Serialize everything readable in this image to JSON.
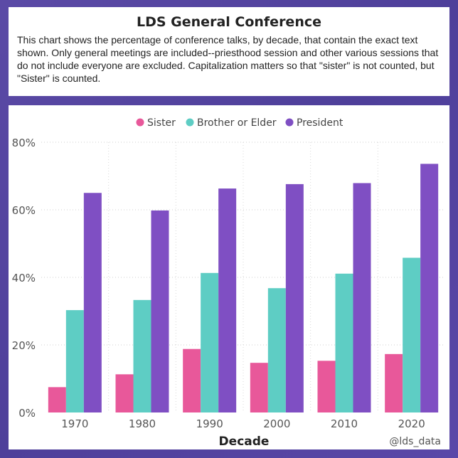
{
  "header": {
    "title": "LDS General Conference",
    "description": "This chart shows the percentage of conference talks, by decade, that contain the exact text shown. Only general meetings are included--priesthood session and other various sessions that do not include everyone are excluded. Capitalization matters so that \"sister\" is not counted, but \"Sister\" is counted."
  },
  "watermark": "@lds_data",
  "chart_data": {
    "type": "bar",
    "title": "LDS General Conference",
    "xlabel": "Decade",
    "ylabel": "",
    "categories": [
      "1970",
      "1980",
      "1990",
      "2000",
      "2010",
      "2020"
    ],
    "series": [
      {
        "name": "Sister",
        "color": "#e8589a",
        "values": [
          7.5,
          11.3,
          18.8,
          14.7,
          15.3,
          17.3
        ]
      },
      {
        "name": "Brother or Elder",
        "color": "#5ecdc4",
        "values": [
          30.3,
          33.3,
          41.3,
          36.8,
          41.1,
          45.8
        ]
      },
      {
        "name": "President",
        "color": "#7f4fc3",
        "values": [
          65.0,
          59.8,
          66.3,
          67.6,
          67.9,
          73.6
        ]
      }
    ],
    "ylim": [
      0,
      80
    ],
    "yticks": [
      0,
      20,
      40,
      60,
      80
    ],
    "ytick_labels": [
      "0%",
      "20%",
      "40%",
      "60%",
      "80%"
    ],
    "grid": true,
    "legend_position": "top-center"
  }
}
